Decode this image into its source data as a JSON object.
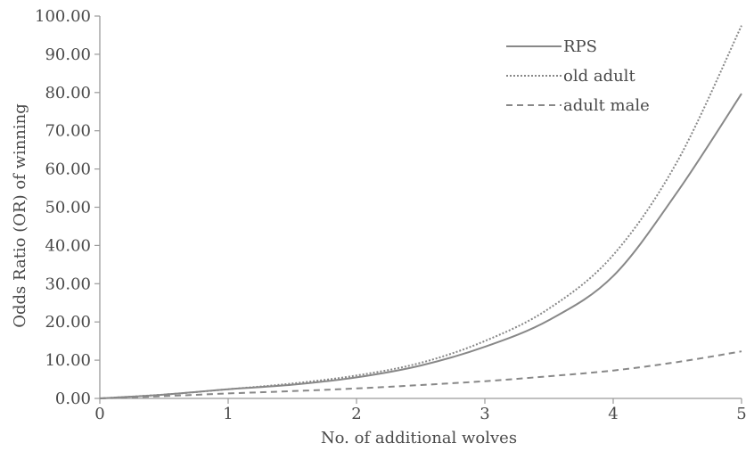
{
  "chart_data": {
    "type": "line",
    "title": "",
    "xlabel": "No. of additional wolves",
    "ylabel": "Odds Ratio (OR) of winning",
    "xlim": [
      0,
      5
    ],
    "ylim": [
      0,
      100
    ],
    "x_ticks": [
      "0",
      "1",
      "2",
      "3",
      "4",
      "5"
    ],
    "y_ticks": [
      "0.00",
      "10.00",
      "20.00",
      "30.00",
      "40.00",
      "50.00",
      "60.00",
      "70.00",
      "80.00",
      "90.00",
      "100.00"
    ],
    "grid": false,
    "legend_position": "top-right",
    "x": [
      0,
      0.5,
      1,
      1.5,
      2,
      2.5,
      3,
      3.5,
      4,
      4.5,
      5
    ],
    "series": [
      {
        "name": "RPS",
        "style": "solid",
        "color": "#888888",
        "values": [
          0.0,
          1.0,
          2.4,
          3.6,
          5.5,
          8.6,
          13.5,
          20.5,
          32.0,
          54.0,
          79.7
        ]
      },
      {
        "name": "old adult",
        "style": "dotted",
        "color": "#888888",
        "values": [
          0.0,
          1.0,
          2.4,
          3.9,
          6.0,
          9.3,
          15.0,
          23.5,
          37.5,
          62.0,
          97.5
        ]
      },
      {
        "name": "adult male",
        "style": "dashed",
        "color": "#888888",
        "values": [
          0.0,
          0.6,
          1.3,
          1.9,
          2.6,
          3.5,
          4.5,
          5.8,
          7.3,
          9.5,
          12.3
        ]
      }
    ]
  }
}
